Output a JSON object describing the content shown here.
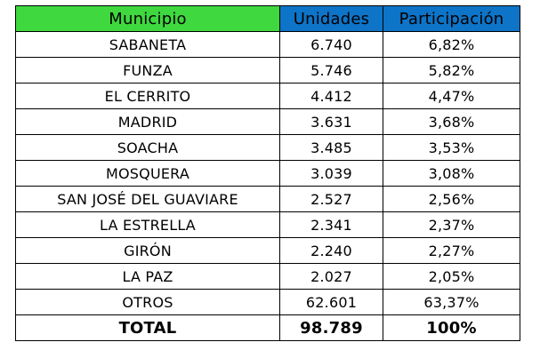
{
  "columns": {
    "municipio": "Municipio",
    "unidades": "Unidades",
    "participacion": "Participación"
  },
  "colors": {
    "municipio_header": "#3fd83f",
    "value_headers": "#0d74c8"
  },
  "rows": [
    {
      "municipio": "SABANETA",
      "unidades": "6.740",
      "participacion": "6,82%"
    },
    {
      "municipio": "FUNZA",
      "unidades": "5.746",
      "participacion": "5,82%"
    },
    {
      "municipio": "EL CERRITO",
      "unidades": "4.412",
      "participacion": "4,47%"
    },
    {
      "municipio": "MADRID",
      "unidades": "3.631",
      "participacion": "3,68%"
    },
    {
      "municipio": "SOACHA",
      "unidades": "3.485",
      "participacion": "3,53%"
    },
    {
      "municipio": "MOSQUERA",
      "unidades": "3.039",
      "participacion": "3,08%"
    },
    {
      "municipio": "SAN JOSÉ DEL GUAVIARE",
      "unidades": "2.527",
      "participacion": "2,56%"
    },
    {
      "municipio": "LA ESTRELLA",
      "unidades": "2.341",
      "participacion": "2,37%"
    },
    {
      "municipio": "GIRÓN",
      "unidades": "2.240",
      "participacion": "2,27%"
    },
    {
      "municipio": "LA PAZ",
      "unidades": "2.027",
      "participacion": "2,05%"
    },
    {
      "municipio": "OTROS",
      "unidades": "62.601",
      "participacion": "63,37%"
    }
  ],
  "total": {
    "label": "TOTAL",
    "unidades": "98.789",
    "participacion": "100%"
  }
}
